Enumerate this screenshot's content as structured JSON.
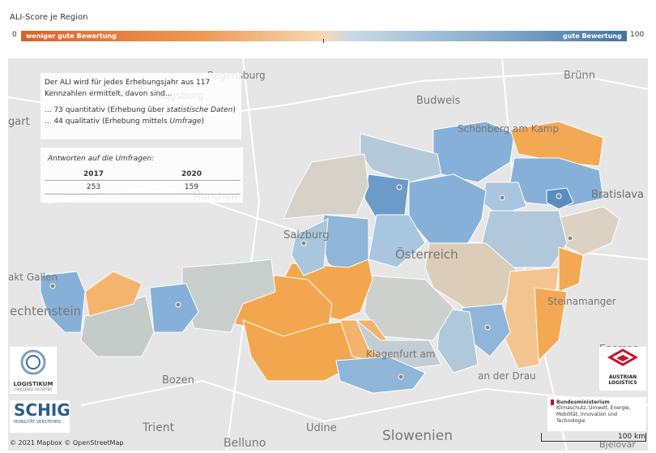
{
  "legend": {
    "title": "ALI-Score je Region",
    "min": "0",
    "max": "100",
    "low_label": "weniger gute Bewertung",
    "high_label": "gute Bewertung"
  },
  "info": {
    "intro": "Der ALI wird für jedes Erhebungsjahr aus 117 Kennzahlen ermittelt, davon sind...",
    "line1": {
      "before": "... 73 quantitativ (Erhebung über ",
      "italic": "statistische Daten",
      "after": ")"
    },
    "line2": {
      "before": "... 44 qualitativ (Erhebung mittels ",
      "italic": "Umfrage",
      "after": ")"
    }
  },
  "survey": {
    "caption": "Antworten auf die Umfragen:",
    "headers": [
      "2017",
      "2020"
    ],
    "rows": [
      [
        "253",
        "159"
      ]
    ]
  },
  "places": [
    "Brünn",
    "Budweis",
    "Regensburg",
    "Augsburg",
    "München",
    "Salzburg",
    "Österreich",
    "Bratislava",
    "Bozen",
    "Trient",
    "Belluno",
    "Udine",
    "Slowenien",
    "an der Drau",
    "Egersee",
    "Schönberg am Kamp",
    "echtenstein",
    "gart",
    "akt Gallen",
    "Steinamanger",
    "Klagenfurt am",
    "Bjelovar",
    "Bratislava"
  ],
  "logos": {
    "logistikum": "LOGISTIKUM",
    "logistikum_sub": "CHALLENGE ACCEPTED",
    "schig": "SCHIG",
    "schig_sub": "MOBILITÄT VERSTEHEN",
    "austrian": "AUSTRIAN LOGISTICS",
    "ministry": "Bundesministerium",
    "ministry_sub": "Klimaschutz, Umwelt, Energie, Mobilität, Innovation und Technologie"
  },
  "attribution": "© 2021 Mapbox © OpenStreetMap",
  "scale": "100 km"
}
